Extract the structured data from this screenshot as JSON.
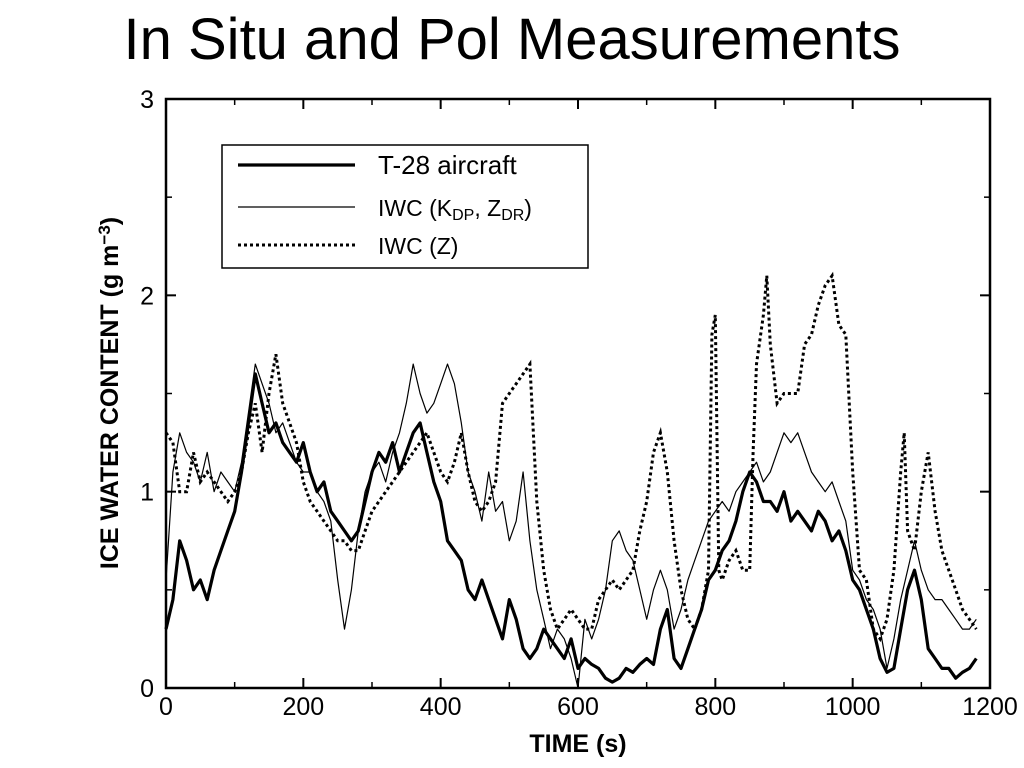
{
  "title": "In Situ and Pol Measurements",
  "chart_data": {
    "type": "line",
    "xlabel": "TIME (s)",
    "ylabel_parts": [
      "ICE WATER CONTENT (g m",
      "−3",
      ")"
    ],
    "xlim": [
      0,
      1200
    ],
    "ylim": [
      0,
      3
    ],
    "xticks": [
      0,
      200,
      400,
      600,
      800,
      1000,
      1200
    ],
    "xtick_labels": [
      "0",
      "200",
      "400",
      "600",
      "800",
      "1000",
      "1200"
    ],
    "yticks": [
      0,
      1,
      2,
      3
    ],
    "ytick_labels": [
      "0",
      "1",
      "2",
      "3"
    ],
    "grid": false,
    "legend_position": "top-left",
    "legend": [
      {
        "parts": [
          [
            "T-28 aircraft",
            "n"
          ]
        ],
        "style": "thick-solid"
      },
      {
        "parts": [
          [
            "IWC (K",
            "n"
          ],
          [
            "DP",
            "sub"
          ],
          [
            ", Z",
            "n"
          ],
          [
            "DR",
            "sub"
          ],
          [
            ")",
            "n"
          ]
        ],
        "style": "thin-solid"
      },
      {
        "parts": [
          [
            "IWC (Z)",
            "n"
          ]
        ],
        "style": "dotted"
      }
    ],
    "series": [
      {
        "name": "T-28 aircraft",
        "style": "thick-solid",
        "x": [
          0,
          10,
          20,
          30,
          40,
          50,
          60,
          70,
          80,
          90,
          100,
          110,
          120,
          130,
          140,
          150,
          160,
          170,
          180,
          190,
          200,
          210,
          220,
          230,
          240,
          250,
          260,
          270,
          280,
          290,
          300,
          310,
          320,
          330,
          340,
          350,
          360,
          370,
          380,
          390,
          400,
          410,
          420,
          430,
          440,
          450,
          460,
          470,
          480,
          490,
          500,
          510,
          520,
          530,
          540,
          550,
          560,
          570,
          580,
          590,
          600,
          610,
          620,
          630,
          640,
          650,
          660,
          670,
          680,
          690,
          700,
          710,
          720,
          730,
          740,
          750,
          760,
          770,
          780,
          790,
          800,
          810,
          820,
          830,
          840,
          850,
          860,
          870,
          880,
          890,
          900,
          910,
          920,
          930,
          940,
          950,
          960,
          970,
          980,
          990,
          1000,
          1010,
          1020,
          1030,
          1040,
          1050,
          1060,
          1070,
          1080,
          1090,
          1100,
          1110,
          1120,
          1130,
          1140,
          1150,
          1160,
          1170,
          1180
        ],
        "values": [
          0.3,
          0.45,
          0.75,
          0.65,
          0.5,
          0.55,
          0.45,
          0.6,
          0.7,
          0.8,
          0.9,
          1.1,
          1.35,
          1.6,
          1.45,
          1.3,
          1.35,
          1.25,
          1.2,
          1.15,
          1.25,
          1.1,
          1.0,
          1.05,
          0.9,
          0.85,
          0.8,
          0.75,
          0.8,
          0.95,
          1.1,
          1.2,
          1.15,
          1.25,
          1.1,
          1.2,
          1.3,
          1.35,
          1.2,
          1.05,
          0.95,
          0.75,
          0.7,
          0.65,
          0.5,
          0.45,
          0.55,
          0.45,
          0.35,
          0.25,
          0.45,
          0.35,
          0.2,
          0.15,
          0.2,
          0.3,
          0.25,
          0.2,
          0.15,
          0.25,
          0.1,
          0.15,
          0.12,
          0.1,
          0.05,
          0.03,
          0.05,
          0.1,
          0.08,
          0.12,
          0.15,
          0.12,
          0.3,
          0.4,
          0.15,
          0.1,
          0.2,
          0.3,
          0.4,
          0.55,
          0.6,
          0.7,
          0.75,
          0.85,
          1.0,
          1.1,
          1.05,
          0.95,
          0.95,
          0.9,
          1.0,
          0.85,
          0.9,
          0.85,
          0.8,
          0.9,
          0.85,
          0.75,
          0.8,
          0.7,
          0.55,
          0.5,
          0.4,
          0.3,
          0.15,
          0.08,
          0.1,
          0.3,
          0.5,
          0.6,
          0.45,
          0.2,
          0.15,
          0.1,
          0.1,
          0.05,
          0.08,
          0.1,
          0.15
        ]
      },
      {
        "name": "IWC (KDP, ZDR)",
        "style": "thin-solid",
        "x": [
          0,
          10,
          20,
          30,
          40,
          50,
          60,
          70,
          80,
          90,
          100,
          110,
          120,
          130,
          140,
          150,
          160,
          170,
          180,
          190,
          200,
          210,
          220,
          230,
          240,
          250,
          260,
          270,
          280,
          290,
          300,
          310,
          320,
          330,
          340,
          350,
          360,
          370,
          380,
          390,
          400,
          410,
          420,
          430,
          440,
          450,
          460,
          470,
          480,
          490,
          500,
          510,
          520,
          530,
          540,
          550,
          560,
          570,
          580,
          590,
          600,
          610,
          620,
          630,
          640,
          650,
          660,
          670,
          680,
          690,
          700,
          710,
          720,
          730,
          740,
          750,
          760,
          770,
          780,
          790,
          800,
          810,
          820,
          830,
          840,
          850,
          860,
          870,
          880,
          890,
          900,
          910,
          920,
          930,
          940,
          950,
          960,
          970,
          980,
          990,
          1000,
          1010,
          1020,
          1030,
          1040,
          1050,
          1060,
          1070,
          1080,
          1090,
          1100,
          1110,
          1120,
          1130,
          1140,
          1150,
          1160,
          1170,
          1180
        ],
        "values": [
          0.55,
          1.1,
          1.3,
          1.2,
          1.15,
          1.05,
          1.2,
          1.0,
          1.1,
          1.05,
          1.0,
          1.15,
          1.4,
          1.65,
          1.55,
          1.45,
          1.3,
          1.35,
          1.25,
          1.15,
          1.1,
          1.1,
          1.0,
          0.95,
          0.85,
          0.55,
          0.3,
          0.5,
          0.8,
          1.0,
          1.1,
          1.15,
          1.05,
          1.2,
          1.3,
          1.45,
          1.65,
          1.5,
          1.4,
          1.45,
          1.55,
          1.65,
          1.55,
          1.35,
          1.1,
          1.0,
          0.85,
          1.1,
          0.9,
          0.95,
          0.75,
          0.85,
          1.1,
          0.75,
          0.5,
          0.35,
          0.2,
          0.3,
          0.25,
          0.15,
          0.0,
          0.35,
          0.25,
          0.35,
          0.5,
          0.75,
          0.8,
          0.7,
          0.65,
          0.5,
          0.35,
          0.5,
          0.6,
          0.5,
          0.3,
          0.4,
          0.55,
          0.65,
          0.75,
          0.85,
          0.9,
          0.95,
          0.9,
          1.0,
          1.05,
          1.1,
          1.15,
          1.05,
          1.1,
          1.2,
          1.3,
          1.25,
          1.3,
          1.2,
          1.1,
          1.05,
          1.0,
          1.05,
          0.95,
          0.85,
          0.6,
          0.55,
          0.45,
          0.4,
          0.3,
          0.1,
          0.25,
          0.45,
          0.6,
          0.75,
          0.6,
          0.5,
          0.45,
          0.45,
          0.4,
          0.35,
          0.3,
          0.3,
          0.35
        ]
      },
      {
        "name": "IWC (Z)",
        "style": "dotted",
        "x": [
          0,
          10,
          20,
          30,
          40,
          50,
          60,
          70,
          80,
          90,
          100,
          110,
          120,
          130,
          140,
          150,
          160,
          170,
          180,
          190,
          200,
          210,
          220,
          230,
          240,
          250,
          260,
          270,
          280,
          290,
          300,
          310,
          320,
          330,
          340,
          350,
          360,
          370,
          380,
          390,
          400,
          410,
          420,
          430,
          440,
          450,
          460,
          470,
          480,
          490,
          500,
          510,
          520,
          530,
          540,
          550,
          560,
          570,
          580,
          590,
          600,
          610,
          620,
          630,
          640,
          650,
          660,
          670,
          680,
          690,
          700,
          710,
          720,
          730,
          740,
          750,
          760,
          770,
          780,
          790,
          795,
          800,
          805,
          810,
          820,
          830,
          840,
          850,
          855,
          860,
          870,
          875,
          880,
          890,
          900,
          910,
          920,
          930,
          940,
          950,
          960,
          970,
          980,
          990,
          1000,
          1005,
          1010,
          1020,
          1030,
          1040,
          1050,
          1060,
          1070,
          1075,
          1080,
          1090,
          1100,
          1110,
          1120,
          1130,
          1140,
          1150,
          1160,
          1170,
          1180
        ],
        "values": [
          1.3,
          1.25,
          1.0,
          1.0,
          1.2,
          1.05,
          1.1,
          1.05,
          1.0,
          0.95,
          1.0,
          1.1,
          1.3,
          1.45,
          1.2,
          1.5,
          1.7,
          1.45,
          1.35,
          1.25,
          1.05,
          0.95,
          0.9,
          0.85,
          0.8,
          0.75,
          0.75,
          0.7,
          0.7,
          0.8,
          0.9,
          0.95,
          1.0,
          1.05,
          1.1,
          1.15,
          1.2,
          1.25,
          1.3,
          1.2,
          1.1,
          1.05,
          1.15,
          1.3,
          1.1,
          0.95,
          0.9,
          0.95,
          1.05,
          1.45,
          1.5,
          1.55,
          1.6,
          1.65,
          0.95,
          0.6,
          0.4,
          0.3,
          0.35,
          0.4,
          0.35,
          0.3,
          0.3,
          0.45,
          0.5,
          0.55,
          0.5,
          0.55,
          0.6,
          0.8,
          0.95,
          1.2,
          1.3,
          1.1,
          0.75,
          0.5,
          0.35,
          0.3,
          0.4,
          0.6,
          1.8,
          1.9,
          0.6,
          0.55,
          0.65,
          0.7,
          0.6,
          0.6,
          1.2,
          1.65,
          1.9,
          2.1,
          1.75,
          1.45,
          1.5,
          1.5,
          1.5,
          1.75,
          1.8,
          1.95,
          2.05,
          2.1,
          1.85,
          1.8,
          1.1,
          0.85,
          0.6,
          0.55,
          0.3,
          0.25,
          0.35,
          0.6,
          1.1,
          1.3,
          0.8,
          0.7,
          1.0,
          1.2,
          0.9,
          0.7,
          0.6,
          0.5,
          0.4,
          0.35,
          0.3
        ]
      }
    ]
  }
}
